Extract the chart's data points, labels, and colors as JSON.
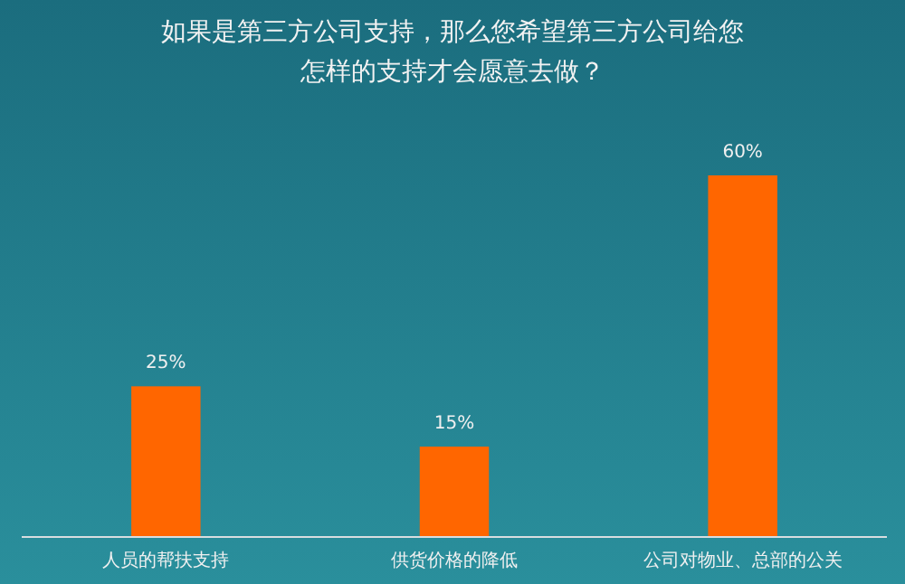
{
  "chart_data": {
    "type": "bar",
    "title": "如果是第三方公司支持，那么您希望第三方公司给您怎样的支持才会愿意去做？",
    "categories": [
      "人员的帮扶支持",
      "供货价格的降低",
      "公司对物业、总部的公关"
    ],
    "values": [
      25,
      15,
      60
    ],
    "color": "#ff6600",
    "value_labels": [
      "25%",
      "15%",
      "60%"
    ]
  }
}
